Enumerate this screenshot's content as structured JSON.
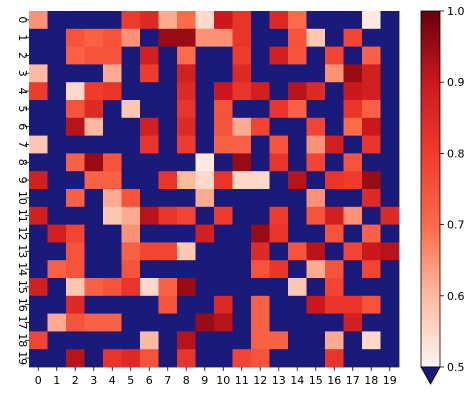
{
  "chart_data": {
    "type": "heatmap",
    "title": "",
    "xlabel": "",
    "ylabel": "",
    "x_labels": [
      "0",
      "1",
      "2",
      "3",
      "4",
      "5",
      "6",
      "7",
      "8",
      "9",
      "10",
      "11",
      "12",
      "13",
      "14",
      "15",
      "16",
      "17",
      "18",
      "19"
    ],
    "y_labels": [
      "0",
      "1",
      "2",
      "3",
      "4",
      "5",
      "6",
      "7",
      "8",
      "9",
      "10",
      "11",
      "12",
      "13",
      "14",
      "15",
      "16",
      "17",
      "18",
      "19"
    ],
    "value_range": [
      0.5,
      1.0
    ],
    "under_color": "#1a1a7a",
    "colorbar": {
      "ticks": [
        "0.5",
        "0.6",
        "0.7",
        "0.8",
        "0.9",
        "1.0"
      ],
      "tick_values": [
        0.5,
        0.6,
        0.7,
        0.8,
        0.9,
        1.0
      ],
      "extend": "min"
    },
    "colormap_stops": [
      {
        "v": 0.5,
        "color": "#fff5f0"
      },
      {
        "v": 0.6,
        "color": "#fcbba1"
      },
      {
        "v": 0.7,
        "color": "#fc6a4a"
      },
      {
        "v": 0.8,
        "color": "#ef3b2c"
      },
      {
        "v": 0.9,
        "color": "#cb181d"
      },
      {
        "v": 1.0,
        "color": "#67000d"
      }
    ],
    "values": [
      [
        0.65,
        0.3,
        0.3,
        0.3,
        0.3,
        0.8,
        0.85,
        0.62,
        0.7,
        0.55,
        0.9,
        0.82,
        0.3,
        0.85,
        0.7,
        0.3,
        0.3,
        0.3,
        0.52,
        0.3
      ],
      [
        0.3,
        0.3,
        0.75,
        0.72,
        0.75,
        0.65,
        0.3,
        0.95,
        0.95,
        0.65,
        0.65,
        0.82,
        0.3,
        0.3,
        0.75,
        0.58,
        0.3,
        0.78,
        0.3,
        0.3
      ],
      [
        0.3,
        0.3,
        0.72,
        0.75,
        0.75,
        0.3,
        0.88,
        0.3,
        0.7,
        0.3,
        0.3,
        0.8,
        0.3,
        0.88,
        0.75,
        0.3,
        0.78,
        0.3,
        0.72,
        0.3
      ],
      [
        0.6,
        0.3,
        0.3,
        0.3,
        0.62,
        0.3,
        0.8,
        0.3,
        0.88,
        0.3,
        0.3,
        0.85,
        0.3,
        0.3,
        0.3,
        0.3,
        0.65,
        0.95,
        0.88,
        0.3
      ],
      [
        0.8,
        0.3,
        0.55,
        0.8,
        0.82,
        0.3,
        0.3,
        0.3,
        0.85,
        0.3,
        0.9,
        0.82,
        0.88,
        0.3,
        0.92,
        0.85,
        0.3,
        0.9,
        0.88,
        0.3
      ],
      [
        0.3,
        0.3,
        0.75,
        0.85,
        0.3,
        0.58,
        0.3,
        0.3,
        0.82,
        0.3,
        0.75,
        0.3,
        0.3,
        0.82,
        0.72,
        0.3,
        0.3,
        0.82,
        0.72,
        0.3
      ],
      [
        0.3,
        0.3,
        0.92,
        0.6,
        0.3,
        0.3,
        0.88,
        0.3,
        0.85,
        0.3,
        0.75,
        0.62,
        0.78,
        0.3,
        0.3,
        0.78,
        0.3,
        0.7,
        0.9,
        0.3
      ],
      [
        0.58,
        0.3,
        0.3,
        0.3,
        0.3,
        0.3,
        0.82,
        0.3,
        0.8,
        0.3,
        0.72,
        0.72,
        0.3,
        0.75,
        0.3,
        0.65,
        0.88,
        0.3,
        0.82,
        0.3
      ],
      [
        0.3,
        0.3,
        0.72,
        0.95,
        0.75,
        0.3,
        0.3,
        0.3,
        0.3,
        0.52,
        0.3,
        0.95,
        0.3,
        0.82,
        0.3,
        0.78,
        0.3,
        0.75,
        0.3,
        0.3
      ],
      [
        0.88,
        0.3,
        0.3,
        0.72,
        0.72,
        0.3,
        0.3,
        0.82,
        0.6,
        0.55,
        0.82,
        0.55,
        0.55,
        0.3,
        0.92,
        0.3,
        0.82,
        0.8,
        0.95,
        0.3
      ],
      [
        0.3,
        0.3,
        0.72,
        0.3,
        0.62,
        0.75,
        0.3,
        0.3,
        0.3,
        0.62,
        0.3,
        0.3,
        0.3,
        0.3,
        0.3,
        0.65,
        0.3,
        0.3,
        0.85,
        0.3
      ],
      [
        0.88,
        0.3,
        0.3,
        0.3,
        0.58,
        0.62,
        0.92,
        0.82,
        0.78,
        0.3,
        0.8,
        0.3,
        0.3,
        0.8,
        0.3,
        0.75,
        0.88,
        0.65,
        0.3,
        0.85
      ],
      [
        0.3,
        0.88,
        0.78,
        0.3,
        0.3,
        0.65,
        0.3,
        0.3,
        0.3,
        0.88,
        0.3,
        0.3,
        0.95,
        0.82,
        0.3,
        0.3,
        0.75,
        0.3,
        0.72,
        0.3
      ],
      [
        0.3,
        0.3,
        0.75,
        0.3,
        0.3,
        0.72,
        0.78,
        0.78,
        0.58,
        0.3,
        0.3,
        0.3,
        0.85,
        0.3,
        0.75,
        0.92,
        0.3,
        0.78,
        0.9,
        0.92
      ],
      [
        0.3,
        0.72,
        0.75,
        0.3,
        0.3,
        0.75,
        0.3,
        0.3,
        0.3,
        0.3,
        0.3,
        0.3,
        0.75,
        0.82,
        0.3,
        0.62,
        0.75,
        0.3,
        0.78,
        0.3
      ],
      [
        0.88,
        0.3,
        0.58,
        0.72,
        0.75,
        0.82,
        0.55,
        0.72,
        0.95,
        0.3,
        0.3,
        0.3,
        0.3,
        0.3,
        0.58,
        0.3,
        0.78,
        0.3,
        0.3,
        0.3
      ],
      [
        0.3,
        0.3,
        0.85,
        0.3,
        0.3,
        0.3,
        0.3,
        0.75,
        0.3,
        0.3,
        0.85,
        0.3,
        0.72,
        0.3,
        0.3,
        0.9,
        0.82,
        0.82,
        0.75,
        0.3
      ],
      [
        0.3,
        0.62,
        0.75,
        0.72,
        0.72,
        0.3,
        0.3,
        0.3,
        0.3,
        0.95,
        0.92,
        0.3,
        0.72,
        0.3,
        0.3,
        0.3,
        0.3,
        0.88,
        0.3,
        0.3
      ],
      [
        0.78,
        0.3,
        0.3,
        0.3,
        0.3,
        0.3,
        0.6,
        0.3,
        0.92,
        0.3,
        0.3,
        0.3,
        0.72,
        0.72,
        0.3,
        0.3,
        0.62,
        0.3,
        0.55,
        0.3
      ],
      [
        0.3,
        0.3,
        0.92,
        0.3,
        0.82,
        0.85,
        0.75,
        0.3,
        0.82,
        0.3,
        0.3,
        0.78,
        0.75,
        0.3,
        0.3,
        0.3,
        0.82,
        0.3,
        0.3,
        0.3
      ]
    ]
  }
}
